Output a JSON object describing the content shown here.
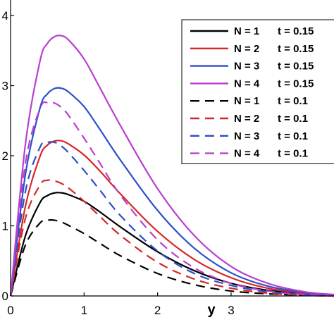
{
  "chart_data": {
    "type": "line",
    "xlabel": "y",
    "ylabel": "",
    "xlim": [
      0,
      4.4
    ],
    "ylim": [
      0,
      4
    ],
    "x_ticks": [
      "0",
      "1",
      "2",
      "3"
    ],
    "y_ticks": [
      "0",
      "1",
      "2",
      "3",
      "4"
    ],
    "grid": false,
    "legend_placement": "top-right",
    "x": [
      0,
      0.2,
      0.4,
      0.5,
      0.6,
      0.7,
      0.8,
      1.0,
      1.2,
      1.5,
      2.0,
      2.5,
      3.0,
      3.5,
      4.0,
      4.4
    ],
    "series": [
      {
        "name": "N = 1",
        "t_label": "t = 0.15",
        "color": "#000000",
        "dash": "solid",
        "values": [
          0,
          0.85,
          1.33,
          1.43,
          1.47,
          1.47,
          1.44,
          1.35,
          1.21,
          0.98,
          0.63,
          0.36,
          0.18,
          0.08,
          0.03,
          0.01
        ]
      },
      {
        "name": "N = 2",
        "t_label": "t = 0.15",
        "color": "#d62728",
        "dash": "solid",
        "values": [
          0,
          1.27,
          1.99,
          2.15,
          2.21,
          2.21,
          2.16,
          2.01,
          1.8,
          1.45,
          0.92,
          0.52,
          0.26,
          0.11,
          0.04,
          0.01
        ]
      },
      {
        "name": "N = 3",
        "t_label": "t = 0.15",
        "color": "#2b50c8",
        "dash": "solid",
        "values": [
          0,
          1.72,
          2.68,
          2.88,
          2.96,
          2.96,
          2.9,
          2.7,
          2.4,
          1.93,
          1.22,
          0.68,
          0.33,
          0.14,
          0.05,
          0.01
        ]
      },
      {
        "name": "N = 4",
        "t_label": "t = 0.15",
        "color": "#b93fcf",
        "dash": "solid",
        "values": [
          0,
          2.15,
          3.35,
          3.6,
          3.7,
          3.71,
          3.64,
          3.38,
          3.0,
          2.42,
          1.53,
          0.86,
          0.42,
          0.18,
          0.06,
          0.02
        ]
      },
      {
        "name": "N = 1",
        "t_label": "t = 0.1",
        "color": "#000000",
        "dash": "dashed",
        "values": [
          0,
          0.72,
          1.04,
          1.08,
          1.08,
          1.05,
          1.0,
          0.89,
          0.76,
          0.57,
          0.32,
          0.16,
          0.07,
          0.03,
          0.01,
          0
        ]
      },
      {
        "name": "N = 2",
        "t_label": "t = 0.1",
        "color": "#d62728",
        "dash": "dashed",
        "values": [
          0,
          1.1,
          1.58,
          1.65,
          1.64,
          1.6,
          1.53,
          1.35,
          1.15,
          0.86,
          0.48,
          0.24,
          0.11,
          0.04,
          0.01,
          0
        ]
      },
      {
        "name": "N = 3",
        "t_label": "t = 0.1",
        "color": "#2b50c8",
        "dash": "dashed",
        "values": [
          0,
          1.48,
          2.12,
          2.19,
          2.19,
          2.13,
          2.03,
          1.79,
          1.53,
          1.14,
          0.64,
          0.32,
          0.15,
          0.06,
          0.02,
          0
        ]
      },
      {
        "name": "N = 4",
        "t_label": "t = 0.1",
        "color": "#b93fcf",
        "dash": "dashed",
        "values": [
          0,
          1.88,
          2.67,
          2.76,
          2.75,
          2.68,
          2.56,
          2.25,
          1.92,
          1.43,
          0.8,
          0.4,
          0.18,
          0.07,
          0.02,
          0
        ]
      }
    ]
  }
}
